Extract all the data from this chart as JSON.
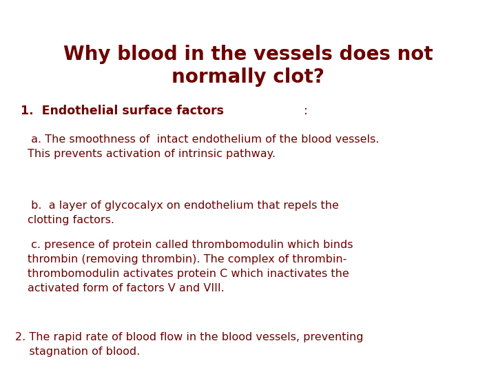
{
  "background_color": "#ffffff",
  "title_line1": "Why blood in the vessels does not",
  "title_line2": "normally clot?",
  "title_color": "#6e0000",
  "title_fontsize": 20,
  "title_fontweight": "bold",
  "body_color": "#6e0000",
  "body_fontsize": 11.5,
  "heading1_bold": "1.  Endothelial surface factors",
  "heading1_normal": ":",
  "heading1_fontsize": 12.5,
  "heading1_fontweight": "bold",
  "para_a": " a. The smoothness of  intact endothelium of the blood vessels.\nThis prevents activation of intrinsic pathway.",
  "para_b": " b.  a layer of glycocalyx on endothelium that repels the\nclotting factors.",
  "para_c": " c. presence of protein called thrombomodulin which binds\nthrombin (removing thrombin). The complex of thrombin-\nthrombomodulin activates protein C which inactivates the\nactivated form of factors V and VIII.",
  "para_2": "2. The rapid rate of blood flow in the blood vessels, preventing\n    stagnation of blood.",
  "fig_width": 7.2,
  "fig_height": 5.4,
  "dpi": 100
}
